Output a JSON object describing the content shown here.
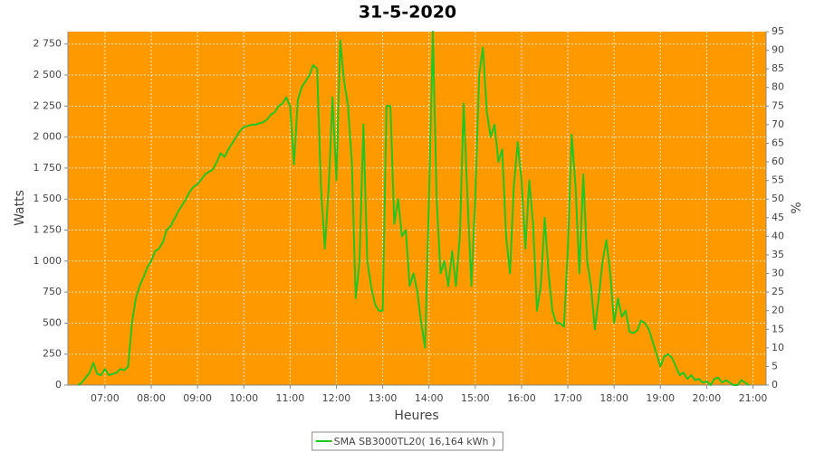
{
  "chart_data": {
    "type": "line",
    "title": "31-5-2020",
    "x_label": "Heures",
    "y_label": "Watts",
    "y2_label": "%",
    "background": "#fe9a00",
    "grid": true,
    "xlim": [
      "06:12",
      "21:17"
    ],
    "xticks": [
      "07:00",
      "08:00",
      "09:00",
      "10:00",
      "11:00",
      "12:00",
      "13:00",
      "14:00",
      "15:00",
      "16:00",
      "17:00",
      "18:00",
      "19:00",
      "20:00",
      "21:00"
    ],
    "ylim": [
      0,
      2850
    ],
    "yticks": [
      0,
      250,
      500,
      750,
      {
        "value": 1000,
        "label": "1 000"
      },
      {
        "value": 1250,
        "label": "1 250"
      },
      {
        "value": 1500,
        "label": "1 500"
      },
      {
        "value": 1750,
        "label": "1 750"
      },
      {
        "value": 2000,
        "label": "2 000"
      },
      {
        "value": 2250,
        "label": "2 250"
      },
      {
        "value": 2500,
        "label": "2 500"
      },
      {
        "value": 2750,
        "label": "2 750"
      }
    ],
    "y2lim": [
      0,
      95
    ],
    "y2ticks": [
      0,
      5,
      10,
      15,
      20,
      25,
      30,
      35,
      40,
      45,
      50,
      55,
      60,
      65,
      70,
      75,
      80,
      85,
      90,
      95
    ],
    "x": [
      "06:25",
      "06:30",
      "06:35",
      "06:40",
      "06:45",
      "06:50",
      "06:55",
      "07:00",
      "07:05",
      "07:10",
      "07:15",
      "07:20",
      "07:25",
      "07:30",
      "07:35",
      "07:40",
      "07:45",
      "07:50",
      "07:55",
      "08:00",
      "08:05",
      "08:10",
      "08:15",
      "08:20",
      "08:25",
      "08:30",
      "08:35",
      "08:40",
      "08:45",
      "08:50",
      "08:55",
      "09:00",
      "09:05",
      "09:10",
      "09:15",
      "09:20",
      "09:25",
      "09:30",
      "09:35",
      "09:40",
      "09:45",
      "09:50",
      "09:55",
      "10:00",
      "10:05",
      "10:10",
      "10:15",
      "10:20",
      "10:25",
      "10:30",
      "10:35",
      "10:40",
      "10:45",
      "10:50",
      "10:55",
      "11:00",
      "11:05",
      "11:10",
      "11:15",
      "11:20",
      "11:25",
      "11:30",
      "11:35",
      "11:40",
      "11:45",
      "11:50",
      "11:55",
      "12:00",
      "12:05",
      "12:10",
      "12:15",
      "12:20",
      "12:25",
      "12:30",
      "12:35",
      "12:40",
      "12:45",
      "12:50",
      "12:55",
      "13:00",
      "13:05",
      "13:10",
      "13:15",
      "13:20",
      "13:25",
      "13:30",
      "13:35",
      "13:40",
      "13:45",
      "13:50",
      "13:55",
      "14:00",
      "14:05",
      "14:10",
      "14:15",
      "14:20",
      "14:25",
      "14:30",
      "14:35",
      "14:40",
      "14:45",
      "14:50",
      "14:55",
      "15:00",
      "15:05",
      "15:10",
      "15:15",
      "15:20",
      "15:25",
      "15:30",
      "15:35",
      "15:40",
      "15:45",
      "15:50",
      "15:55",
      "16:00",
      "16:05",
      "16:10",
      "16:15",
      "16:20",
      "16:25",
      "16:30",
      "16:35",
      "16:40",
      "16:45",
      "16:50",
      "16:55",
      "17:00",
      "17:05",
      "17:10",
      "17:15",
      "17:20",
      "17:25",
      "17:30",
      "17:35",
      "17:40",
      "17:45",
      "17:50",
      "17:55",
      "18:00",
      "18:05",
      "18:10",
      "18:15",
      "18:20",
      "18:25",
      "18:30",
      "18:35",
      "18:40",
      "18:45",
      "18:50",
      "18:55",
      "19:00",
      "19:05",
      "19:10",
      "19:15",
      "19:20",
      "19:25",
      "19:30",
      "19:35",
      "19:40",
      "19:45",
      "19:50",
      "19:55",
      "20:00",
      "20:05",
      "20:10",
      "20:15",
      "20:20",
      "20:25",
      "20:30",
      "20:35",
      "20:40",
      "20:45",
      "20:50",
      "20:55"
    ],
    "series": [
      {
        "name": "SMA SB3000TL20( 16,164 kWh )",
        "color": "#22c522",
        "values": [
          0,
          20,
          60,
          100,
          180,
          90,
          80,
          130,
          80,
          90,
          100,
          130,
          120,
          150,
          500,
          700,
          800,
          870,
          950,
          1000,
          1080,
          1100,
          1150,
          1250,
          1280,
          1340,
          1400,
          1450,
          1500,
          1560,
          1600,
          1620,
          1660,
          1700,
          1720,
          1740,
          1800,
          1870,
          1840,
          1900,
          1950,
          2000,
          2050,
          2080,
          2090,
          2100,
          2100,
          2110,
          2120,
          2140,
          2180,
          2200,
          2250,
          2270,
          2320,
          2250,
          1780,
          2300,
          2400,
          2450,
          2500,
          2580,
          2550,
          1600,
          1100,
          1600,
          2320,
          1650,
          2780,
          2450,
          2250,
          1800,
          700,
          1000,
          2100,
          1000,
          800,
          650,
          600,
          600,
          2250,
          2250,
          1300,
          1500,
          1200,
          1250,
          800,
          900,
          750,
          500,
          300,
          1500,
          2850,
          1500,
          900,
          1000,
          800,
          1080,
          800,
          1200,
          2270,
          1500,
          800,
          1500,
          2500,
          2720,
          2200,
          2000,
          2100,
          1800,
          1900,
          1200,
          900,
          1600,
          1960,
          1650,
          1100,
          1650,
          1300,
          600,
          800,
          1350,
          900,
          600,
          500,
          500,
          470,
          1100,
          2020,
          1600,
          900,
          1700,
          1000,
          800,
          450,
          700,
          1000,
          1170,
          900,
          500,
          700,
          550,
          600,
          430,
          420,
          440,
          520,
          500,
          450,
          350,
          250,
          150,
          230,
          250,
          220,
          150,
          80,
          100,
          50,
          80,
          40,
          50,
          20,
          30,
          0,
          50,
          60,
          20,
          40,
          20,
          0,
          0,
          40,
          20,
          0
        ]
      }
    ]
  }
}
